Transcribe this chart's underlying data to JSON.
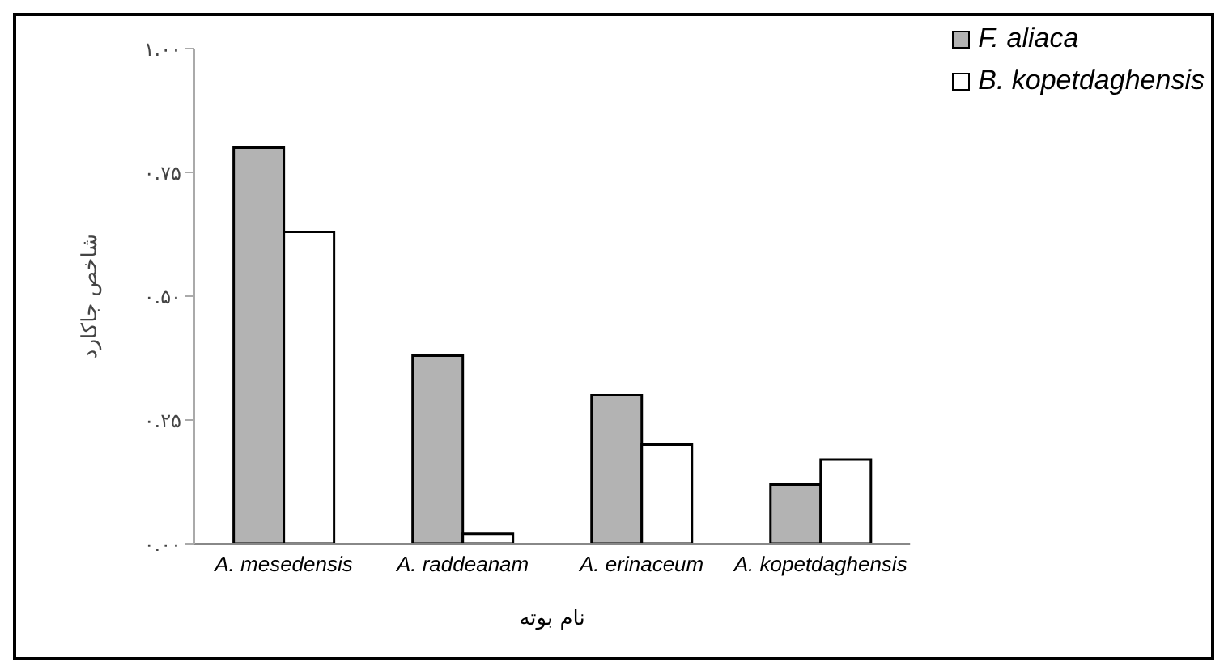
{
  "chart_data": {
    "type": "bar",
    "xlabel": "نام بوته",
    "ylabel": "شاخص جاکارد",
    "categories": [
      "A. mesedensis",
      "A. raddeanam",
      "A. erinaceum",
      "A. kopetdaghensis"
    ],
    "series": [
      {
        "name": "F. aliaca",
        "color": "#b3b3b3",
        "values": [
          0.8,
          0.38,
          0.3,
          0.12
        ]
      },
      {
        "name": "B. kopetdaghensis",
        "color": "#ffffff",
        "values": [
          0.63,
          0.02,
          0.2,
          0.17
        ]
      }
    ],
    "ylim": [
      0,
      1
    ],
    "yticks": [
      {
        "value": 0,
        "label": "۰.۰۰"
      },
      {
        "value": 0.25,
        "label": "۰.۲۵"
      },
      {
        "value": 0.5,
        "label": "۰.۵۰"
      },
      {
        "value": 0.75,
        "label": "۰.۷۵"
      },
      {
        "value": 1,
        "label": "۱.۰۰"
      }
    ],
    "grid": false,
    "legend": "top right"
  }
}
